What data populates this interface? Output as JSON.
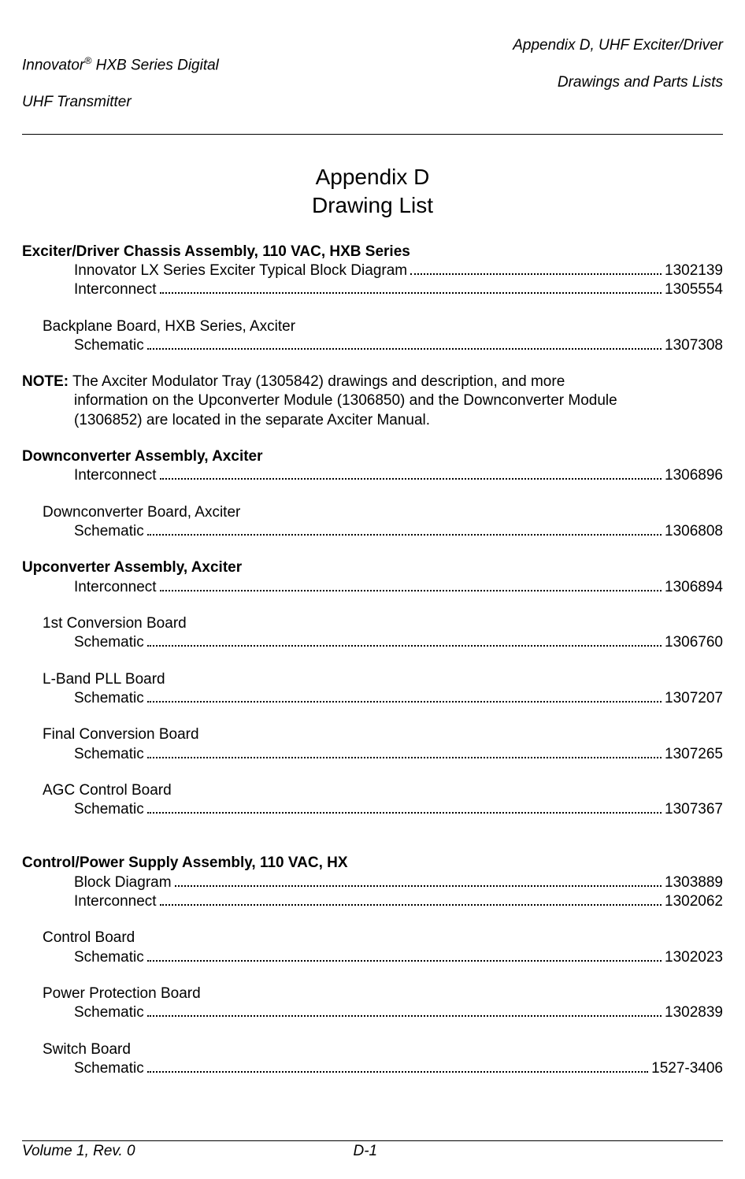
{
  "header": {
    "left_line1_a": "Innovator",
    "left_line1_sup": "®",
    "left_line1_b": " HXB Series Digital",
    "left_line2": "UHF Transmitter",
    "right_line1": "Appendix D, UHF Exciter/Driver",
    "right_line2": "Drawings and Parts Lists"
  },
  "title": {
    "line1": "Appendix D",
    "line2": "Drawing List"
  },
  "sections": [
    {
      "heading": "Exciter/Driver Chassis Assembly, 110 VAC, HXB Series",
      "entries": [
        {
          "label": "Innovator LX Series Exciter Typical Block Diagram",
          "num": "1302139"
        },
        {
          "label": "Interconnect",
          "num": "1305554"
        }
      ],
      "subs": [
        {
          "heading": "Backplane Board, HXB Series, Axciter",
          "entries": [
            {
              "label": "Schematic",
              "num": "1307308"
            }
          ]
        }
      ]
    }
  ],
  "note": {
    "prefix": "NOTE:",
    "text_line1": " The Axciter Modulator Tray (1305842) drawings and description, and more",
    "text_line2": "information on the Upconverter Module (1306850) and the Downconverter Module",
    "text_line3": "(1306852) are located in the separate Axciter Manual."
  },
  "sections2": [
    {
      "heading": "Downconverter Assembly, Axciter",
      "entries": [
        {
          "label": "Interconnect",
          "num": "1306896"
        }
      ],
      "subs": [
        {
          "heading": "Downconverter Board, Axciter",
          "entries": [
            {
              "label": "Schematic",
              "num": "1306808"
            }
          ]
        }
      ]
    },
    {
      "heading": "Upconverter Assembly, Axciter",
      "entries": [
        {
          "label": "Interconnect",
          "num": "1306894"
        }
      ],
      "subs": [
        {
          "heading": "1st Conversion Board",
          "entries": [
            {
              "label": "Schematic",
              "num": "1306760"
            }
          ]
        },
        {
          "heading": "L-Band PLL Board",
          "entries": [
            {
              "label": "Schematic",
              "num": "1307207"
            }
          ]
        },
        {
          "heading": "Final Conversion Board",
          "entries": [
            {
              "label": "Schematic",
              "num": "1307265"
            }
          ]
        },
        {
          "heading": "AGC Control Board",
          "entries": [
            {
              "label": "Schematic",
              "num": "1307367"
            }
          ]
        }
      ]
    },
    {
      "heading": "Control/Power Supply Assembly, 110 VAC, HX",
      "extra_gap": true,
      "entries": [
        {
          "label": "Block Diagram",
          "num": "1303889"
        },
        {
          "label": "Interconnect",
          "num": "1302062"
        }
      ],
      "subs": [
        {
          "heading": "Control Board",
          "entries": [
            {
              "label": "Schematic",
              "num": "1302023"
            }
          ]
        },
        {
          "heading": "Power Protection Board",
          "entries": [
            {
              "label": "Schematic",
              "num": "1302839"
            }
          ]
        },
        {
          "heading": "Switch Board",
          "entries": [
            {
              "label": "Schematic",
              "num": "1527-3406"
            }
          ]
        }
      ]
    }
  ],
  "footer": {
    "left": "Volume 1, Rev. 0",
    "page": "D-1"
  }
}
